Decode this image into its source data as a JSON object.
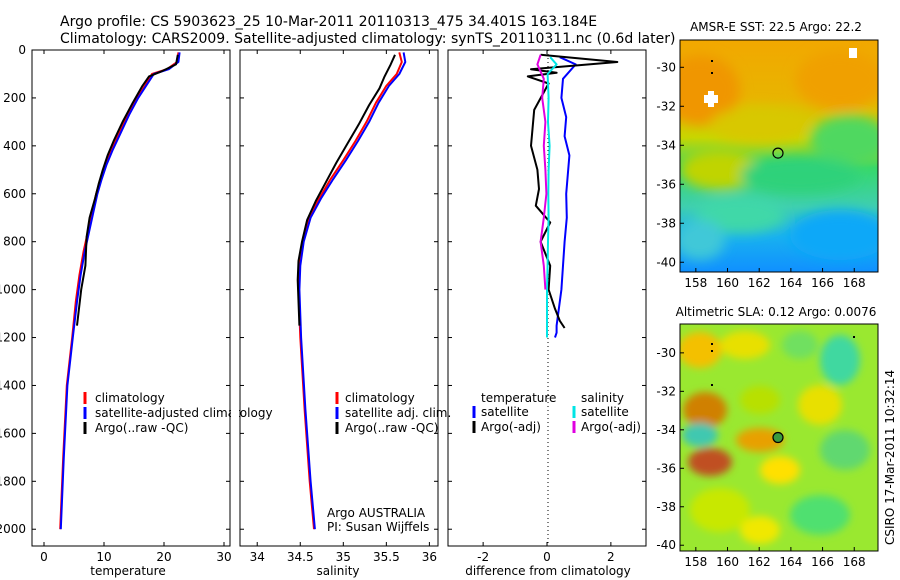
{
  "header": {
    "title_line1": "Argo profile: CS 5903623_25 10-Mar-2011 20110313_475 34.401S 163.184E",
    "title_line2": "Climatology: CARS2009. Satellite-adjusted climatology: synTS_20110311.nc (0.6d later)"
  },
  "credit": {
    "line1": "Argo AUSTRALIA",
    "line2": "PI: Susan Wijffels"
  },
  "timestamp": "CSIRO 17-Mar-2011 10:32:14",
  "colors": {
    "climatology": "#ff0000",
    "satellite": "#0000ff",
    "argo": "#000000",
    "sal_satellite": "#00e5e5",
    "sal_argo": "#e000e0"
  },
  "chart_data": [
    {
      "type": "line",
      "id": "temperature-profile",
      "xlabel": "temperature",
      "xlim": [
        -2,
        31
      ],
      "xticks": [
        0,
        10,
        20,
        30
      ],
      "ylim": [
        0,
        2070
      ],
      "yticks": [
        0,
        200,
        400,
        600,
        800,
        1000,
        1200,
        1400,
        1600,
        1800,
        2000
      ],
      "inverted_y": true,
      "legend": [
        "climatology",
        "satellite-adjusted climatology",
        "Argo(..raw -QC)"
      ],
      "series": [
        {
          "name": "climatology",
          "color": "#ff0000",
          "x": [
            22.4,
            22.2,
            20.5,
            18,
            16.8,
            15.5,
            14,
            12.5,
            11.2,
            10.2,
            9.4,
            8.7,
            8,
            7.3,
            6.6,
            5.9,
            5.3,
            4.7,
            3.8,
            3.2,
            2.7
          ],
          "y": [
            10,
            50,
            80,
            100,
            150,
            200,
            270,
            350,
            420,
            480,
            540,
            600,
            680,
            760,
            840,
            940,
            1050,
            1200,
            1400,
            1700,
            2000
          ]
        },
        {
          "name": "satellite-adjusted climatology",
          "color": "#0000ff",
          "x": [
            22.6,
            22.4,
            20.8,
            18.3,
            17,
            15.7,
            14.2,
            12.7,
            11.4,
            10.4,
            9.6,
            8.9,
            8.2,
            7.5,
            6.8,
            6.1,
            5.5,
            4.8,
            3.9,
            3.3,
            2.8
          ],
          "y": [
            10,
            50,
            80,
            100,
            150,
            200,
            270,
            350,
            420,
            480,
            540,
            600,
            680,
            760,
            840,
            940,
            1050,
            1200,
            1400,
            1700,
            2000
          ]
        },
        {
          "name": "Argo(..raw -QC)",
          "color": "#000000",
          "x": [
            22.3,
            22,
            19.5,
            17.5,
            16.4,
            14.8,
            13.1,
            11.6,
            10.6,
            9.8,
            9.1,
            8.5,
            7.6,
            7.1,
            6.9,
            6.2,
            5.5
          ],
          "y": [
            20,
            60,
            90,
            110,
            150,
            220,
            300,
            380,
            440,
            500,
            560,
            620,
            700,
            780,
            900,
            1000,
            1150
          ]
        }
      ]
    },
    {
      "type": "line",
      "id": "salinity-profile",
      "xlabel": "salinity",
      "xlim": [
        33.8,
        36.1
      ],
      "xticks": [
        34,
        34.5,
        35,
        35.5,
        36
      ],
      "ylim": [
        0,
        2070
      ],
      "inverted_y": true,
      "legend": [
        "climatology",
        "satellite adj. clim.",
        "Argo(..raw -QC)"
      ],
      "series": [
        {
          "name": "climatology",
          "color": "#ff0000",
          "x": [
            35.65,
            35.68,
            35.62,
            35.5,
            35.38,
            35.27,
            35.14,
            35,
            34.85,
            34.72,
            34.6,
            34.53,
            34.49,
            34.48,
            34.5,
            34.55,
            34.61,
            34.66
          ],
          "y": [
            10,
            50,
            100,
            150,
            220,
            300,
            380,
            460,
            540,
            620,
            700,
            800,
            900,
            1000,
            1200,
            1500,
            1800,
            2000
          ]
        },
        {
          "name": "satellite adj. clim.",
          "color": "#0000ff",
          "x": [
            35.7,
            35.72,
            35.65,
            35.53,
            35.41,
            35.3,
            35.17,
            35.03,
            34.88,
            34.74,
            34.62,
            34.54,
            34.5,
            34.49,
            34.51,
            34.56,
            34.62,
            34.67
          ],
          "y": [
            10,
            50,
            100,
            150,
            220,
            300,
            380,
            460,
            540,
            620,
            700,
            800,
            900,
            1000,
            1200,
            1500,
            1800,
            2000
          ]
        },
        {
          "name": "Argo(..raw -QC)",
          "color": "#000000",
          "x": [
            35.6,
            35.55,
            35.48,
            35.42,
            35.3,
            35.18,
            35.05,
            34.92,
            34.8,
            34.68,
            34.58,
            34.52,
            34.48,
            34.47,
            34.49
          ],
          "y": [
            20,
            60,
            110,
            160,
            230,
            310,
            390,
            470,
            550,
            630,
            710,
            800,
            880,
            960,
            1150
          ]
        }
      ]
    },
    {
      "type": "line",
      "id": "difference-profile",
      "xlabel": "difference from climatology",
      "xlim": [
        -3.1,
        3.1
      ],
      "xticks": [
        -2,
        0,
        2
      ],
      "ylim": [
        0,
        2070
      ],
      "inverted_y": true,
      "legend_left_header": "temperature",
      "legend_right_header": "salinity",
      "legend_left": [
        "satellite",
        "Argo(-adj)"
      ],
      "legend_right": [
        "satellite",
        "Argo(-adj)"
      ],
      "series": [
        {
          "name": "temperature satellite",
          "color": "#0000ff",
          "x": [
            0.4,
            0.9,
            0.5,
            0.45,
            0.6,
            0.55,
            0.7,
            0.65,
            0.6,
            0.62,
            0.55,
            0.5,
            0.45,
            0.35,
            0.3,
            0.3,
            0.25
          ],
          "y": [
            30,
            60,
            120,
            200,
            280,
            360,
            440,
            520,
            600,
            700,
            800,
            900,
            1000,
            1100,
            1150,
            1180,
            1200
          ]
        },
        {
          "name": "temperature Argo(-adj)",
          "color": "#000000",
          "x": [
            -0.2,
            2.2,
            -0.5,
            0.3,
            -0.6,
            0.05,
            -0.4,
            -0.5,
            -0.3,
            -0.25,
            -0.35,
            0.1,
            -0.2,
            0.1,
            0.05,
            0.25,
            0.4,
            0.55
          ],
          "y": [
            20,
            50,
            80,
            95,
            110,
            140,
            250,
            400,
            500,
            580,
            650,
            720,
            800,
            900,
            1000,
            1080,
            1130,
            1160
          ]
        },
        {
          "name": "salinity satellite",
          "color": "#00e5e5",
          "x": [
            0.1,
            0.3,
            0.02,
            0.05,
            0.03,
            0.08,
            0.05,
            0.04,
            0.05,
            0.03,
            0.02,
            0.0,
            0.0
          ],
          "y": [
            30,
            60,
            100,
            200,
            300,
            400,
            500,
            600,
            700,
            800,
            900,
            1000,
            1200
          ]
        },
        {
          "name": "salinity Argo(-adj)",
          "color": "#e000e0",
          "x": [
            -0.2,
            -0.3,
            -0.1,
            -0.15,
            -0.05,
            -0.1,
            -0.05,
            -0.02,
            -0.1,
            -0.2,
            -0.1,
            -0.05
          ],
          "y": [
            20,
            60,
            120,
            200,
            300,
            400,
            500,
            600,
            700,
            800,
            900,
            1000
          ]
        }
      ]
    },
    {
      "type": "heatmap",
      "id": "sst-map",
      "title": "AMSR-E SST: 22.5  Argo: 22.2",
      "xlim": [
        157,
        169.5
      ],
      "ylim": [
        -40.5,
        -28.6
      ],
      "xticks": [
        158,
        160,
        162,
        164,
        166,
        168
      ],
      "yticks": [
        -30,
        -32,
        -34,
        -36,
        -38,
        -40
      ],
      "marker": {
        "lon": 163.184,
        "lat": -34.401
      }
    },
    {
      "type": "heatmap",
      "id": "sla-map",
      "title": "Altimetric SLA: 0.12  Argo: 0.0076",
      "xlim": [
        157,
        169.5
      ],
      "ylim": [
        -40.3,
        -28.5
      ],
      "xticks": [
        158,
        160,
        162,
        164,
        166,
        168
      ],
      "yticks": [
        -30,
        -32,
        -34,
        -36,
        -38,
        -40
      ],
      "marker": {
        "lon": 163.184,
        "lat": -34.401
      }
    }
  ]
}
